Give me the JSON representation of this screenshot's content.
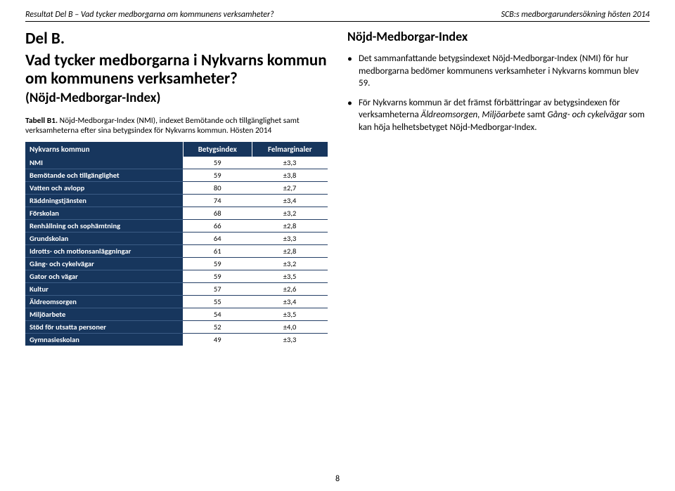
{
  "header": {
    "left": "Resultat Del B – Vad tycker medborgarna om kommunens verksamheter?",
    "right": "SCB:s medborgarundersökning hösten 2014"
  },
  "left": {
    "part_label": "Del B.",
    "main_question": "Vad tycker medborgarna i Nykvarns kommun om kommunens verksamheter?",
    "sub_question": "(Nöjd-Medborgar-Index)",
    "caption_bold": "Tabell B1.",
    "caption_rest": " Nöjd-Medborgar-Index (NMI), indexet Bemötande och tillgänglighet samt verksamheterna efter sina betygsindex för Nykvarns kommun. Hösten 2014",
    "table": {
      "head": [
        "Nykvarns kommun",
        "Betygsindex",
        "Felmarginaler"
      ],
      "rows": [
        [
          "NMI",
          "59",
          "±3,3"
        ],
        [
          "Bemötande och tillgänglighet",
          "59",
          "±3,8"
        ],
        [
          "Vatten och avlopp",
          "80",
          "±2,7"
        ],
        [
          "Räddningstjänsten",
          "74",
          "±3,4"
        ],
        [
          "Förskolan",
          "68",
          "±3,2"
        ],
        [
          "Renhållning och sophämtning",
          "66",
          "±2,8"
        ],
        [
          "Grundskolan",
          "64",
          "±3,3"
        ],
        [
          "Idrotts- och motionsanläggningar",
          "61",
          "±2,8"
        ],
        [
          "Gång- och cykelvägar",
          "59",
          "±3,2"
        ],
        [
          "Gator och vägar",
          "59",
          "±3,5"
        ],
        [
          "Kultur",
          "57",
          "±2,6"
        ],
        [
          "Äldreomsorgen",
          "55",
          "±3,4"
        ],
        [
          "Miljöarbete",
          "54",
          "±3,5"
        ],
        [
          "Stöd för utsatta personer",
          "52",
          "±4,0"
        ],
        [
          "Gymnasieskolan",
          "49",
          "±3,3"
        ]
      ]
    }
  },
  "right": {
    "title": "Nöjd-Medborgar-Index",
    "b1_a": "Det sammanfattande betygsindexet Nöjd-Medborgar-Index (NMI) för hur medborgarna bedömer kommunens verksamheter i Nykvarns kommun blev 59.",
    "b2_a": "För Nykvarns kommun är det främst förbättringar av betygsindexen för verksamheterna ",
    "b2_em1": "Äldreomsorgen, Miljöarbete",
    "b2_b": " samt ",
    "b2_em2": "Gång- och cykelvägar",
    "b2_c": " som kan höja helhetsbetyget Nöjd-Medborgar-Index."
  },
  "page_number": "8",
  "colors": {
    "header_bg": "#17365d",
    "header_fg": "#ffffff"
  }
}
